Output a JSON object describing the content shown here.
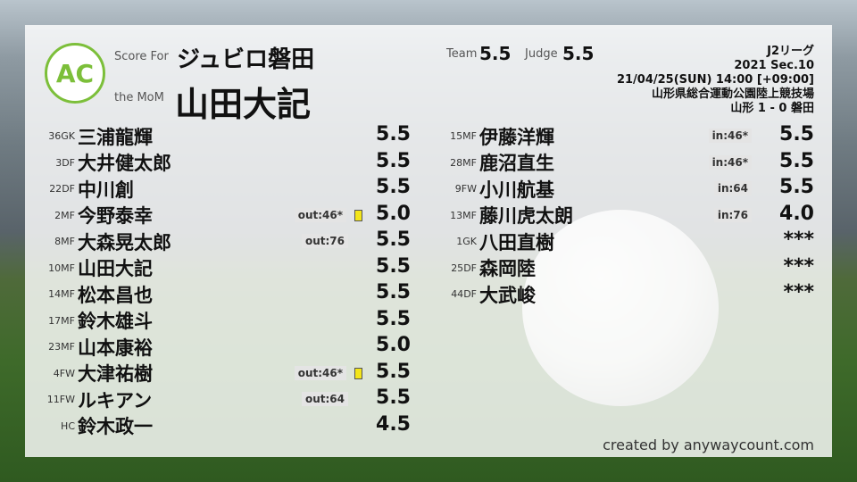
{
  "header": {
    "logo_text": "AC",
    "logo_ring": "ANYWAY COUNT",
    "score_for_label": "Score For",
    "team": "ジュビロ磐田",
    "mom_label": "the MoM",
    "mom": "山田大記",
    "team_label": "Team",
    "team_score": "5.5",
    "judge_label": "Judge",
    "judge_score": "5.5"
  },
  "match": {
    "league": "J2リーグ",
    "section": "2021 Sec.10",
    "datetime": "21/04/25(SUN) 14:00 [+09:00]",
    "venue": "山形県総合運動公園陸上競技場",
    "result": "山形 1 - 0 磐田"
  },
  "left": [
    {
      "num": "36",
      "pos": "GK",
      "name": "三浦龍輝",
      "score": "5.5"
    },
    {
      "num": "3",
      "pos": "DF",
      "name": "大井健太郎",
      "score": "5.5"
    },
    {
      "num": "22",
      "pos": "DF",
      "name": "中川創",
      "score": "5.5"
    },
    {
      "num": "2",
      "pos": "MF",
      "name": "今野泰幸",
      "score": "5.0",
      "sub": "out:46*",
      "card": "yellow"
    },
    {
      "num": "8",
      "pos": "MF",
      "name": "大森晃太郎",
      "score": "5.5",
      "sub": "out:76"
    },
    {
      "num": "10",
      "pos": "MF",
      "name": "山田大記",
      "score": "5.5"
    },
    {
      "num": "14",
      "pos": "MF",
      "name": "松本昌也",
      "score": "5.5"
    },
    {
      "num": "17",
      "pos": "MF",
      "name": "鈴木雄斗",
      "score": "5.5"
    },
    {
      "num": "23",
      "pos": "MF",
      "name": "山本康裕",
      "score": "5.0"
    },
    {
      "num": "4",
      "pos": "FW",
      "name": "大津祐樹",
      "score": "5.5",
      "sub": "out:46*",
      "card": "yellow"
    },
    {
      "num": "11",
      "pos": "FW",
      "name": "ルキアン",
      "score": "5.5",
      "sub": "out:64"
    },
    {
      "num": "",
      "pos": "HC",
      "name": "鈴木政一",
      "score": "4.5"
    }
  ],
  "right": [
    {
      "num": "15",
      "pos": "MF",
      "name": "伊藤洋輝",
      "score": "5.5",
      "sub": "in:46*"
    },
    {
      "num": "28",
      "pos": "MF",
      "name": "鹿沼直生",
      "score": "5.5",
      "sub": "in:46*"
    },
    {
      "num": "9",
      "pos": "FW",
      "name": "小川航基",
      "score": "5.5",
      "sub": "in:64"
    },
    {
      "num": "13",
      "pos": "MF",
      "name": "藤川虎太朗",
      "score": "4.0",
      "sub": "in:76"
    },
    {
      "num": "1",
      "pos": "GK",
      "name": "八田直樹",
      "score": "***"
    },
    {
      "num": "25",
      "pos": "DF",
      "name": "森岡陸",
      "score": "***"
    },
    {
      "num": "44",
      "pos": "DF",
      "name": "大武峻",
      "score": "***"
    }
  ],
  "credit": "created by anywaycount.com",
  "colors": {
    "brand": "#7cbf3a",
    "yellow_card": "#f3e51a"
  }
}
